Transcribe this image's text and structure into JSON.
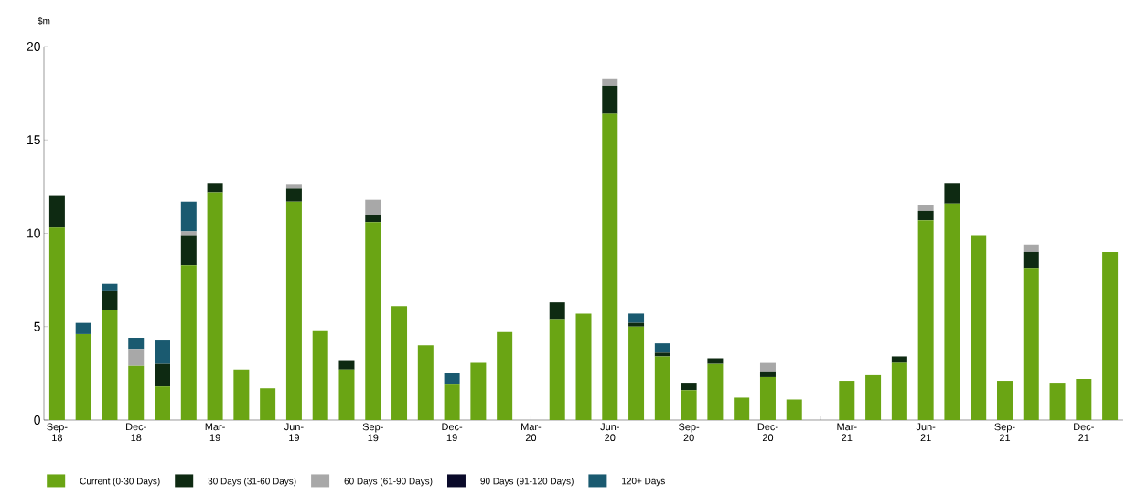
{
  "chart_data": {
    "type": "bar",
    "stacked": true,
    "ylabel": "$m",
    "categories": [
      "Sep-18",
      null,
      null,
      "Dec-18",
      null,
      null,
      "Mar-19",
      null,
      null,
      "Jun-19",
      null,
      null,
      "Sep-19",
      null,
      null,
      "Dec-19",
      null,
      null,
      "Mar-20",
      null,
      null,
      "Jun-20",
      null,
      null,
      "Sep-20",
      null,
      null,
      "Dec-20",
      null,
      null,
      "Mar-21",
      null,
      null,
      "Jun-21",
      null,
      null,
      "Sep-21",
      null,
      null,
      "Dec-21",
      null
    ],
    "series": [
      {
        "name": "Current (0-30 Days)",
        "color": "#6aa514",
        "values": [
          10.3,
          4.6,
          5.9,
          2.9,
          1.8,
          8.3,
          12.2,
          2.7,
          1.7,
          11.7,
          4.8,
          2.7,
          10.6,
          6.1,
          4.0,
          1.9,
          3.1,
          4.7,
          0,
          5.4,
          5.7,
          16.4,
          5.0,
          3.4,
          1.6,
          3.0,
          1.2,
          2.3,
          1.1,
          0,
          2.1,
          2.4,
          3.1,
          10.7,
          11.6,
          9.9,
          2.1,
          8.1,
          2.0,
          2.2,
          9.0
        ]
      },
      {
        "name": "30 Days (31-60 Days)",
        "color": "#0e2a12",
        "values": [
          1.7,
          0,
          1.0,
          0,
          1.2,
          1.6,
          0.5,
          0,
          0,
          0.7,
          0,
          0.5,
          0.4,
          0,
          0,
          0,
          0,
          0,
          0,
          0.9,
          0,
          1.5,
          0.2,
          0.2,
          0.4,
          0.3,
          0,
          0.3,
          0,
          0,
          0,
          0,
          0.3,
          0.5,
          1.1,
          0,
          0,
          0.9,
          0,
          0,
          0
        ]
      },
      {
        "name": "60 Days (61-90 Days)",
        "color": "#a8a8a8",
        "values": [
          0,
          0,
          0,
          0.9,
          0,
          0.2,
          0,
          0,
          0,
          0.2,
          0,
          0,
          0.8,
          0,
          0,
          0,
          0,
          0,
          0,
          0,
          0,
          0.4,
          0,
          0,
          0,
          0,
          0,
          0.5,
          0,
          0,
          0,
          0,
          0,
          0.3,
          0,
          0,
          0,
          0.4,
          0,
          0,
          0
        ]
      },
      {
        "name": "90 Days (91-120 Days)",
        "color": "#0a0a2a",
        "values": [
          0,
          0,
          0,
          0,
          0,
          0,
          0,
          0,
          0,
          0,
          0,
          0,
          0,
          0,
          0,
          0,
          0,
          0,
          0,
          0,
          0,
          0,
          0,
          0,
          0,
          0,
          0,
          0,
          0,
          0,
          0,
          0,
          0,
          0,
          0,
          0,
          0,
          0,
          0,
          0,
          0
        ]
      },
      {
        "name": "120+ Days",
        "color": "#1a5a70",
        "values": [
          0,
          0.6,
          0.4,
          0.6,
          1.3,
          1.6,
          0,
          0,
          0,
          0,
          0,
          0,
          0,
          0,
          0,
          0.6,
          0,
          0,
          0,
          0,
          0,
          0,
          0.5,
          0.5,
          0,
          0,
          0,
          0,
          0,
          0,
          0,
          0,
          0,
          0,
          0,
          0,
          0,
          0,
          0,
          0,
          0
        ]
      }
    ],
    "ylim": [
      0,
      20
    ],
    "yticks": [
      0,
      5,
      10,
      15,
      20
    ],
    "grid": false,
    "legend": "bottom"
  }
}
